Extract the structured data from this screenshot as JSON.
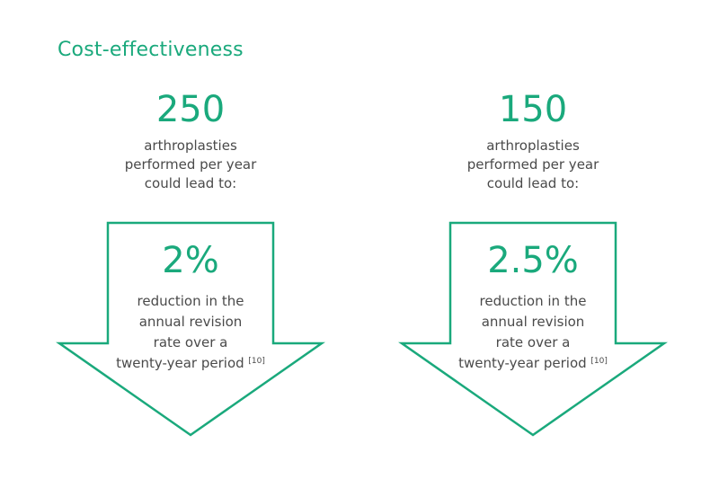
{
  "title": "Cost-effectiveness",
  "accent_color": "#1aa97c",
  "text_color": "#4a4a4a",
  "columns": [
    {
      "number": "250",
      "intro": [
        "arthroplasties",
        "performed per year",
        "could lead to:"
      ],
      "percent": "2%",
      "desc": [
        "reduction in the",
        "annual revision",
        "rate over a",
        "twenty-year period"
      ],
      "reference": "[10]"
    },
    {
      "number": "150",
      "intro": [
        "arthroplasties",
        "performed per year",
        "could lead to:"
      ],
      "percent": "2.5%",
      "desc": [
        "reduction in the",
        "annual revision",
        "rate over a",
        "twenty-year period"
      ],
      "reference": "[10]"
    }
  ]
}
